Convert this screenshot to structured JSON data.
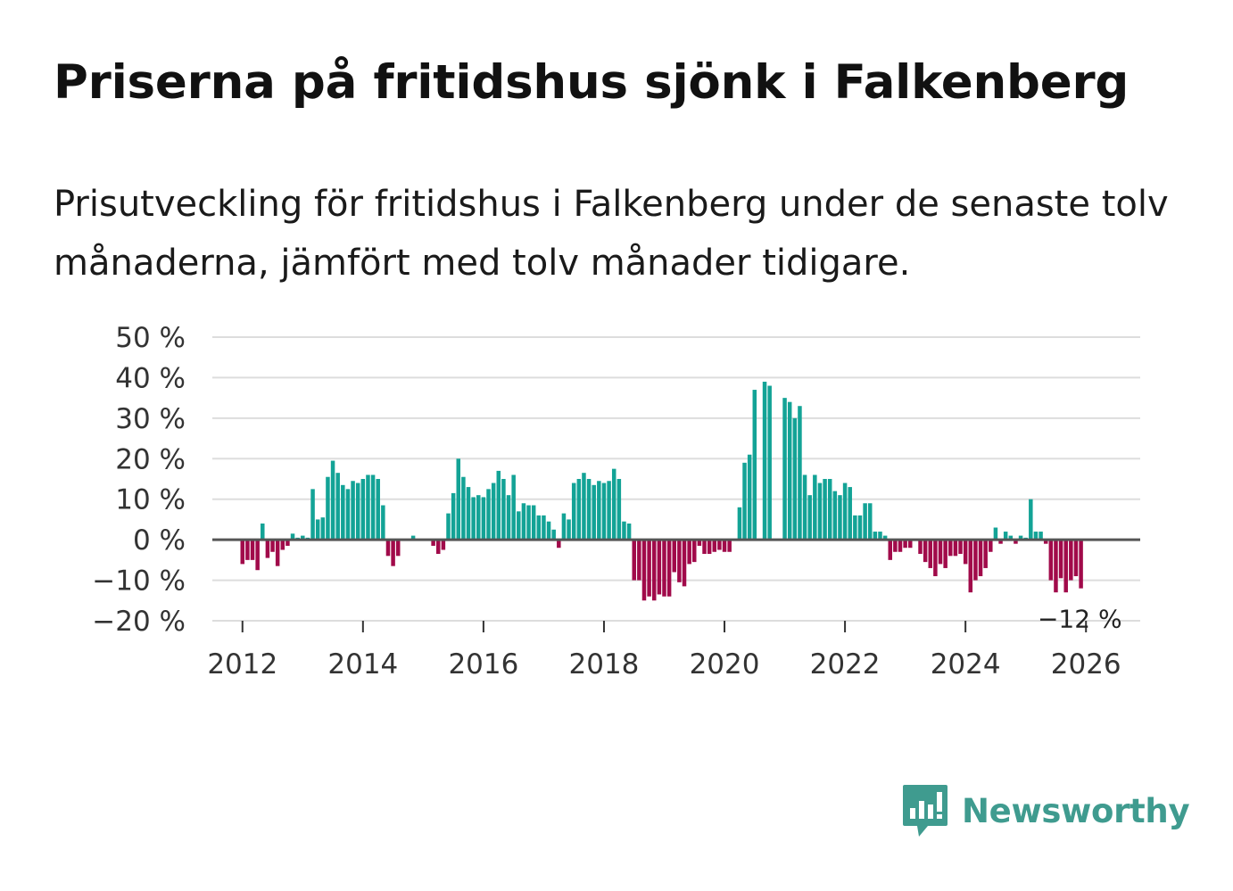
{
  "header": {
    "title": "Priserna på fritidshus sjönk i Falkenberg",
    "subtitle": "Prisutveckling för fritidshus i Falkenberg under de senaste tolv månaderna, jämfört med tolv månader tidigare."
  },
  "colors": {
    "positive": "#13a396",
    "negative": "#a10a4a",
    "grid": "#dddddd",
    "zero_line": "#555555",
    "brand": "#3f9b8f"
  },
  "brand": {
    "name": "Newsworthy",
    "icon": "bar-chart-speech-bubble-icon"
  },
  "chart_data": {
    "type": "bar",
    "title": "Priserna på fritidshus sjönk i Falkenberg",
    "xlabel": "",
    "ylabel": "",
    "ylim": [
      -20,
      50
    ],
    "xlim": [
      2011.5,
      2026.9
    ],
    "y_ticks": [
      50,
      40,
      30,
      20,
      10,
      0,
      -10,
      -20
    ],
    "y_tick_labels": [
      "50 %",
      "40 %",
      "30 %",
      "20 %",
      "10 %",
      "0 %",
      "−10 %",
      "−20 %"
    ],
    "x_ticks": [
      2012,
      2014,
      2016,
      2018,
      2020,
      2022,
      2024,
      2026
    ],
    "x_tick_labels": [
      "2012",
      "2014",
      "2016",
      "2018",
      "2020",
      "2022",
      "2024",
      "2026"
    ],
    "start": {
      "year": 2012,
      "month": 1
    },
    "unit": "%",
    "series": [
      {
        "name": "Prisutveckling",
        "values": [
          -6,
          -5,
          -5,
          -7.5,
          4,
          -4.5,
          -3,
          -6.5,
          -2.5,
          -1.5,
          1.5,
          0.5,
          1,
          0.5,
          12.5,
          5,
          5.5,
          15.5,
          19.5,
          16.5,
          13.5,
          12.5,
          14.5,
          14,
          15,
          16,
          16,
          15,
          8.5,
          -4,
          -6.5,
          -4,
          0,
          0,
          1,
          0,
          0,
          0,
          -1.5,
          -3.5,
          -2.5,
          6.5,
          11.5,
          20,
          15.5,
          13,
          10.5,
          11,
          10.5,
          12.5,
          14,
          17,
          15,
          11,
          16,
          7,
          9,
          8.5,
          8.5,
          6,
          6,
          4.5,
          2.5,
          -2,
          6.5,
          5,
          14,
          15,
          16.5,
          15,
          13.5,
          14.5,
          14,
          14.5,
          17.5,
          15,
          4.5,
          4,
          -10,
          -10,
          -15,
          -14,
          -15,
          -13.5,
          -14,
          -14,
          -8,
          -10.5,
          -11.5,
          -6,
          -5.5,
          -1.5,
          -3.5,
          -3.5,
          -3,
          -2.5,
          -3,
          -3,
          0,
          8,
          19,
          21,
          37,
          0,
          39,
          38,
          0,
          0,
          35,
          34,
          30,
          33,
          16,
          11,
          16,
          14,
          15,
          15,
          12,
          11,
          14,
          13,
          6,
          6,
          9,
          9,
          2,
          2,
          1,
          -5,
          -3,
          -3,
          -2,
          -2,
          0,
          -3.5,
          -5.5,
          -7,
          -9,
          -6,
          -7,
          -4,
          -4,
          -3.5,
          -6,
          -13,
          -10,
          -9,
          -7,
          -3,
          3,
          -1,
          2,
          1,
          -1,
          1,
          0.5,
          10,
          2,
          2,
          -1,
          -10,
          -13,
          -9.5,
          -13,
          -10,
          -9,
          -12
        ]
      }
    ],
    "annotations": [
      {
        "label": "−12 %",
        "value": -12,
        "note": "latest value"
      }
    ]
  }
}
